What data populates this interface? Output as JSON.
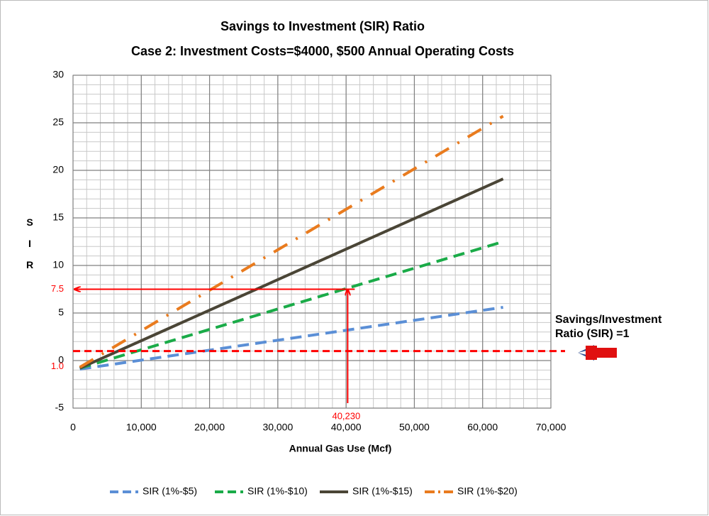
{
  "chart_data": {
    "type": "line",
    "title": [
      "Savings to Investment (SIR) Ratio",
      "Case 2: Investment Costs=$4000, $500 Annual Operating Costs"
    ],
    "x_label": "Annual Gas Use (Mcf)",
    "y_label": "SIR",
    "x": [
      1000,
      63000
    ],
    "series": [
      {
        "name": "SIR (1%-$5)",
        "color": "#5b8fd6",
        "dash": "dash",
        "values": [
          -0.9,
          5.6
        ]
      },
      {
        "name": "SIR (1%-$10)",
        "color": "#1aab48",
        "dash": "dash",
        "values": [
          -0.8,
          12.5
        ]
      },
      {
        "name": "SIR (1%-$15)",
        "color": "#4a4536",
        "dash": "solid",
        "values": [
          -0.8,
          19.1
        ]
      },
      {
        "name": "SIR (1%-$20)",
        "color": "#e97b1e",
        "dash": "dashdot",
        "values": [
          -0.7,
          25.7
        ]
      }
    ],
    "xlim": [
      0,
      70000
    ],
    "xticks": [
      0,
      {
        "value": 10000,
        "label": "10,000"
      },
      {
        "value": 20000,
        "label": "20,000"
      },
      {
        "value": 30000,
        "label": "30,000"
      },
      {
        "value": 40000,
        "label": "40,000"
      },
      {
        "value": 50000,
        "label": "50,000"
      },
      {
        "value": 60000,
        "label": "60,000"
      },
      {
        "value": 70000,
        "label": "70,000"
      }
    ],
    "ylim": [
      -5,
      30
    ],
    "yticks": [
      -5,
      0,
      5,
      10,
      15,
      20,
      25,
      30
    ],
    "grid": true,
    "minor_grid_x": 2000,
    "minor_grid_y": 1,
    "legend": "bottom",
    "reference_line": {
      "y": 1,
      "label": "1.0",
      "text": [
        "Savings/Investment",
        "Ratio (SIR) =1"
      ],
      "color": "#ff0000"
    },
    "readout": {
      "x": 40230,
      "x_label": "40,230",
      "y": 7.5,
      "y_label": "7.5",
      "color": "#ff0000"
    }
  }
}
